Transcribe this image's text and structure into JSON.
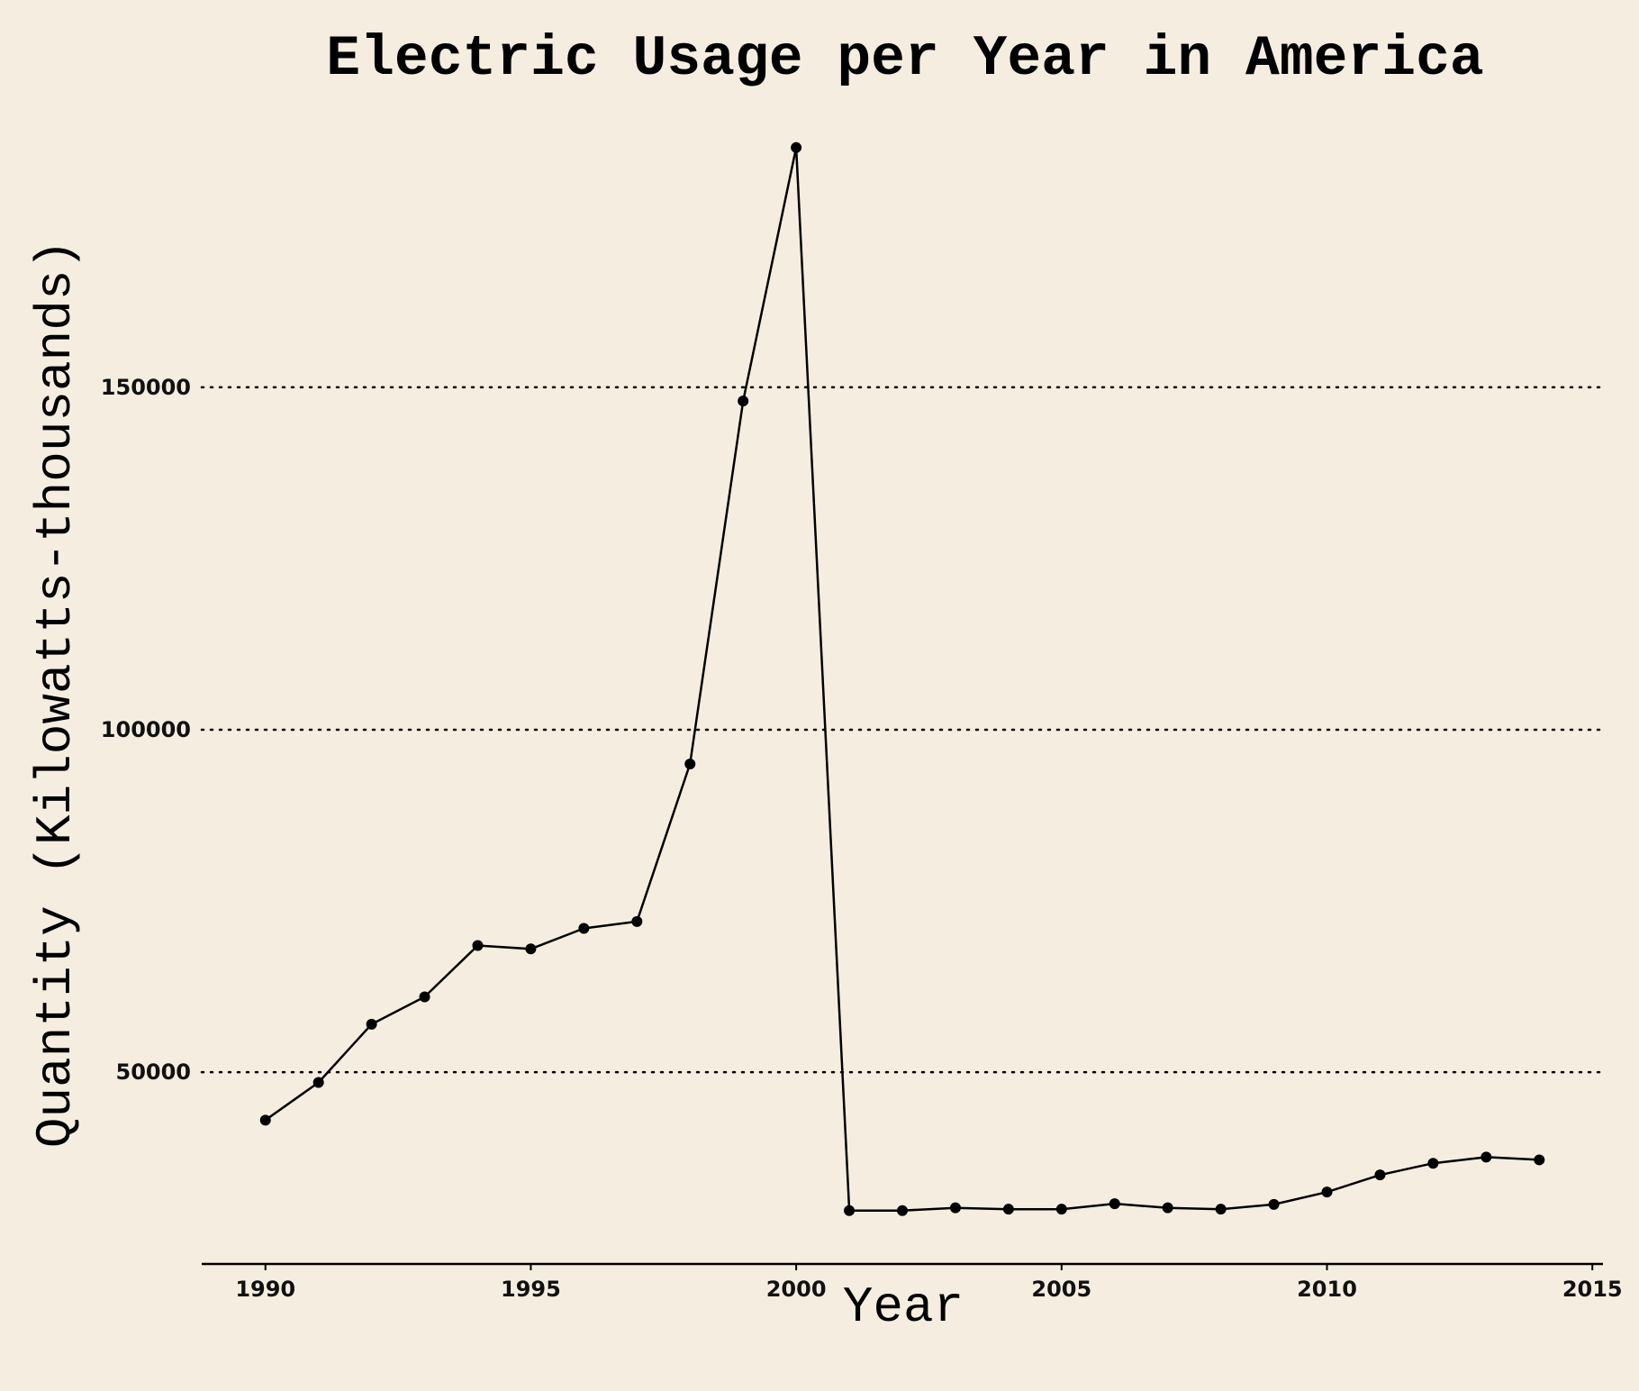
{
  "chart_data": {
    "type": "line",
    "title": "Electric Usage per Year in America",
    "xlabel": "Year",
    "ylabel": "Quantity (Kilowatts-thousands)",
    "xlim": [
      1988.8,
      2015.2
    ],
    "ylim": [
      22000,
      188000
    ],
    "xticks": [
      1990,
      1995,
      2000,
      2005,
      2010,
      2015
    ],
    "yticks": [
      50000,
      100000,
      150000
    ],
    "grid": "horizontal dotted",
    "legend": "none",
    "colors": {
      "background": "#f5eee0",
      "line": "#000000",
      "marker": "#000000"
    },
    "series": [
      {
        "x": [
          1990,
          1991,
          1992,
          1993,
          1994,
          1995,
          1996,
          1997,
          1998,
          1999,
          2000,
          2001,
          2002,
          2003,
          2004,
          2005,
          2006,
          2007,
          2008,
          2009,
          2010,
          2011,
          2012,
          2013,
          2014
        ],
        "y": [
          43000,
          48500,
          57000,
          61000,
          68500,
          68000,
          71000,
          72000,
          95000,
          148000,
          185000,
          29800,
          29800,
          30200,
          30000,
          30000,
          30800,
          30200,
          30000,
          30700,
          32500,
          35000,
          36700,
          37600,
          37200
        ]
      }
    ]
  }
}
